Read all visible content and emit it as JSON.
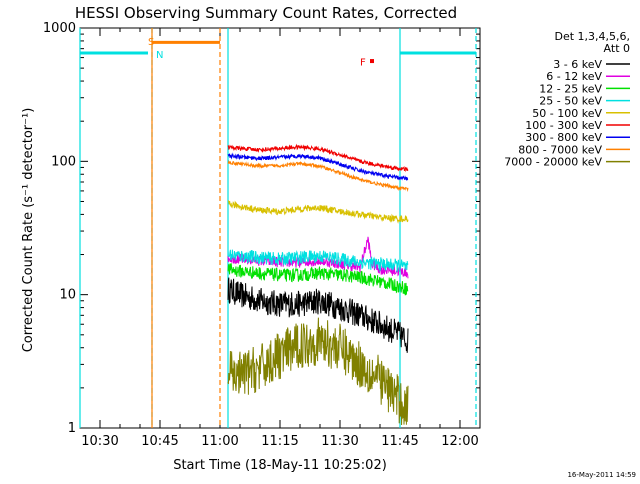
{
  "chart_data": {
    "type": "line",
    "title": "HESSI Observing Summary Count Rates, Corrected",
    "xlabel": "Start Time (18-May-11 10:25:02)",
    "ylabel": "Corrected Count Rate (s⁻¹ detector⁻¹)",
    "yscale": "log",
    "xlim": [
      "10:25",
      "12:05"
    ],
    "ylim": [
      1,
      1000
    ],
    "x_ticks": [
      "10:30",
      "10:45",
      "11:00",
      "11:15",
      "11:30",
      "11:45",
      "12:00"
    ],
    "y_ticks": [
      "1",
      "10",
      "100",
      "1000"
    ],
    "grid": false,
    "legend_position": "top-right",
    "legend_header": [
      "Det 1,3,4,5,6,",
      "Att 0"
    ],
    "footer_date": "16-May-2011 14:59",
    "series": [
      {
        "name": "3 - 6 keV",
        "color": "#000000",
        "noise": 0.1,
        "x": [
          "11:02",
          "11:05",
          "11:10",
          "11:15",
          "11:20",
          "11:25",
          "11:30",
          "11:35",
          "11:40",
          "11:45",
          "11:47"
        ],
        "y": [
          11,
          10,
          9,
          8.5,
          8.5,
          9,
          8,
          7,
          6,
          5,
          4.5
        ]
      },
      {
        "name": "6 - 12 keV",
        "color": "#e000e0",
        "noise": 0.04,
        "x": [
          "11:02",
          "11:05",
          "11:10",
          "11:15",
          "11:20",
          "11:25",
          "11:30",
          "11:35",
          "11:37",
          "11:38",
          "11:40",
          "11:45",
          "11:47"
        ],
        "y": [
          19,
          18.5,
          18,
          17.5,
          17.5,
          18,
          17,
          16,
          26,
          17,
          15.5,
          15,
          14.5
        ]
      },
      {
        "name": "12 - 25 keV",
        "color": "#00e000",
        "noise": 0.05,
        "x": [
          "11:02",
          "11:05",
          "11:10",
          "11:15",
          "11:20",
          "11:25",
          "11:30",
          "11:35",
          "11:40",
          "11:45",
          "11:47"
        ],
        "y": [
          15.5,
          15,
          14.5,
          14,
          14,
          14.5,
          14,
          13.5,
          12.5,
          11.5,
          11
        ]
      },
      {
        "name": "25 - 50 keV",
        "color": "#00e0e0",
        "noise": 0.05,
        "x": [
          "11:02",
          "11:05",
          "11:10",
          "11:15",
          "11:20",
          "11:25",
          "11:30",
          "11:35",
          "11:40",
          "11:45",
          "11:47"
        ],
        "y": [
          20,
          19.5,
          19,
          18.5,
          19,
          19.5,
          18.5,
          17.5,
          17,
          16.5,
          16
        ]
      },
      {
        "name": "50 - 100 keV",
        "color": "#d8c000",
        "noise": 0.025,
        "x": [
          "11:02",
          "11:05",
          "11:10",
          "11:15",
          "11:20",
          "11:25",
          "11:30",
          "11:35",
          "11:40",
          "11:45",
          "11:47"
        ],
        "y": [
          48,
          46,
          43,
          42,
          44,
          45,
          42,
          40,
          38,
          37,
          37
        ]
      },
      {
        "name": "100 - 300 keV",
        "color": "#f00000",
        "noise": 0.015,
        "x": [
          "11:02",
          "11:05",
          "11:10",
          "11:15",
          "11:20",
          "11:25",
          "11:30",
          "11:35",
          "11:40",
          "11:45",
          "11:47"
        ],
        "y": [
          128,
          125,
          122,
          125,
          128,
          124,
          112,
          100,
          93,
          88,
          87
        ]
      },
      {
        "name": "300 - 800 keV",
        "color": "#0000f0",
        "noise": 0.015,
        "x": [
          "11:02",
          "11:05",
          "11:10",
          "11:15",
          "11:20",
          "11:25",
          "11:30",
          "11:35",
          "11:40",
          "11:45",
          "11:47"
        ],
        "y": [
          110,
          108,
          105,
          107,
          110,
          106,
          95,
          85,
          79,
          75,
          74
        ]
      },
      {
        "name": "800 - 7000 keV",
        "color": "#ff8000",
        "noise": 0.012,
        "x": [
          "11:02",
          "11:05",
          "11:10",
          "11:15",
          "11:20",
          "11:25",
          "11:30",
          "11:35",
          "11:40",
          "11:45",
          "11:47"
        ],
        "y": [
          98,
          96,
          92,
          93,
          96,
          92,
          82,
          73,
          67,
          63,
          62
        ]
      },
      {
        "name": "7000 - 20000 keV",
        "color": "#808000",
        "noise": 0.18,
        "x": [
          "11:02",
          "11:05",
          "11:10",
          "11:15",
          "11:20",
          "11:25",
          "11:30",
          "11:35",
          "11:40",
          "11:45",
          "11:47"
        ],
        "y": [
          2.5,
          2.5,
          2.8,
          3.5,
          4.2,
          4.5,
          4.0,
          3.0,
          2.3,
          1.6,
          1.4
        ]
      }
    ],
    "status_bars": [
      {
        "color": "#00e0e0",
        "x_start": "10:25",
        "x_end": "10:42",
        "y": 650
      },
      {
        "color": "#ff8000",
        "x_start": "10:43",
        "x_end": "11:00",
        "y": 780
      },
      {
        "color": "#00e0e0",
        "x_start": "11:45",
        "x_end": "12:04",
        "y": 650
      }
    ],
    "vertical_lines": [
      {
        "color": "#00e0e0",
        "x": "10:25",
        "dashed": false
      },
      {
        "color": "#00e0e0",
        "x": "10:43",
        "dashed": true
      },
      {
        "color": "#ff8000",
        "x": "10:43",
        "dashed": false
      },
      {
        "color": "#ff8000",
        "x": "11:00",
        "dashed": true
      },
      {
        "color": "#00e0e0",
        "x": "11:02",
        "dashed": false
      },
      {
        "color": "#00e0e0",
        "x": "11:45",
        "dashed": false
      },
      {
        "color": "#00e0e0",
        "x": "12:04",
        "dashed": true
      }
    ],
    "flag_labels": [
      {
        "text": "S",
        "color": "#ff8000",
        "x": "10:43",
        "y": 800
      },
      {
        "text": "N",
        "color": "#00e0e0",
        "x": "10:45",
        "y": 640
      },
      {
        "text": "F",
        "color": "#f00000",
        "x": "11:36",
        "y": 560
      }
    ],
    "flare_marker": {
      "color": "#f00000",
      "x": "11:38",
      "y": 565
    }
  }
}
